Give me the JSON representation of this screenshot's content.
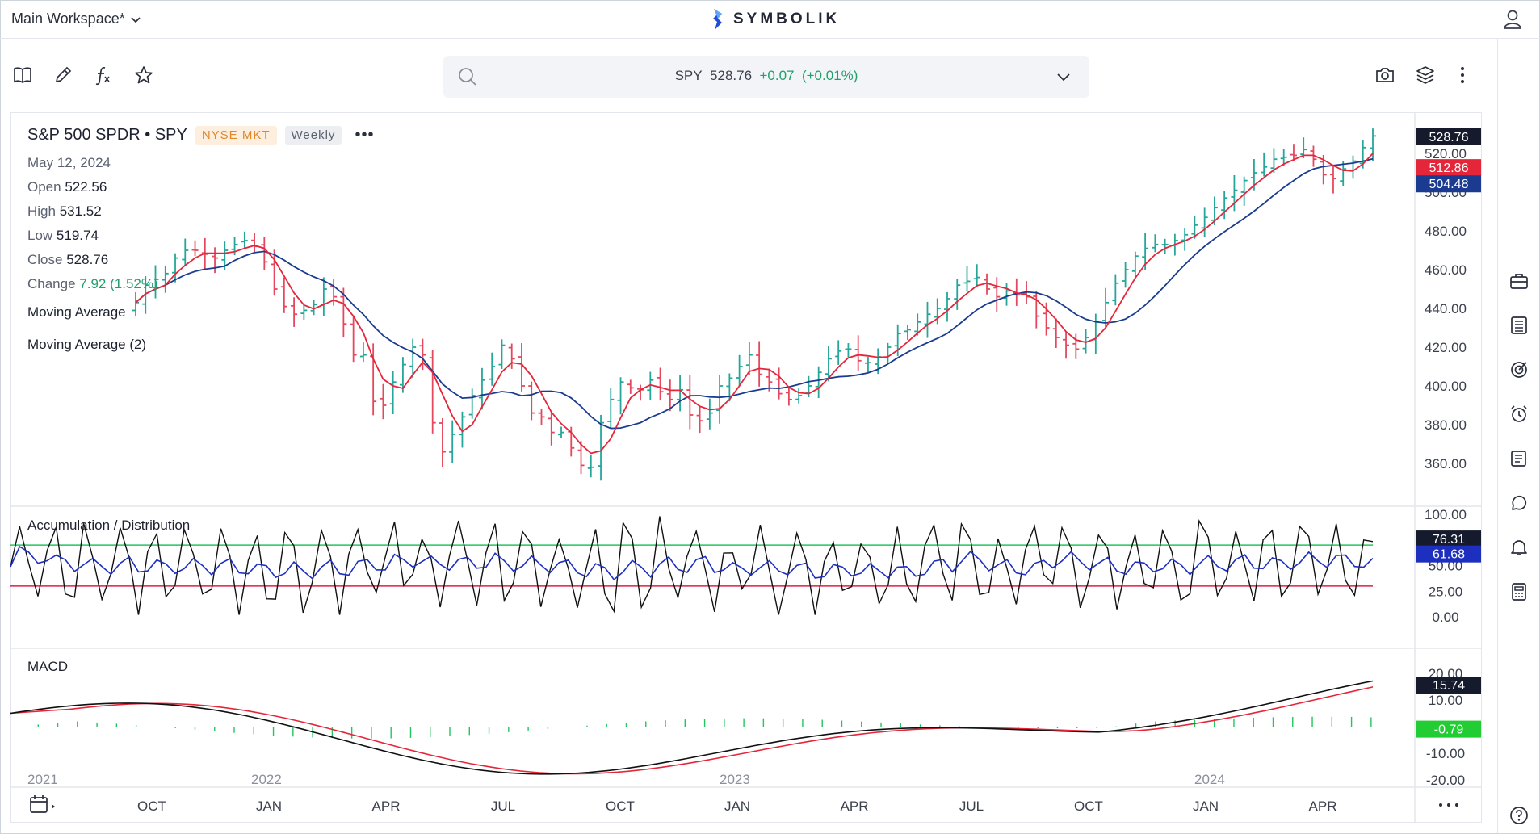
{
  "topbar": {
    "workspace": "Main Workspace*",
    "brand": "SYMBOLIK"
  },
  "search": {
    "symbol": "SPY",
    "price": "528.76",
    "change": "+0.07",
    "change_pct": "(+0.01%)"
  },
  "legend": {
    "name": "S&P 500 SPDR • SPY",
    "exchange": "NYSE MKT",
    "interval": "Weekly",
    "more": "•••",
    "date": "May 12, 2024",
    "open_label": "Open",
    "open": "522.56",
    "high_label": "High",
    "high": "531.52",
    "low_label": "Low",
    "low": "519.74",
    "close_label": "Close",
    "close": "528.76",
    "change_label": "Change",
    "change": "7.92 (1.52%)",
    "ma1": "Moving Average",
    "ma2": "Moving Average (2)"
  },
  "subpanels": {
    "ad_title": "Accumulation / Distribution",
    "macd_title": "MACD"
  },
  "colors": {
    "up": "#26a69a",
    "down": "#e5485e",
    "ma_fast": "#e5263a",
    "ma_slow": "#1a3b8f",
    "band_upper": "#22c55e",
    "band_lower": "#e11d48",
    "hist": "#22c55e"
  },
  "chart_data": [
    {
      "type": "candlestick",
      "title": "S&P 500 SPDR • SPY",
      "y_ticks": [
        "520.00",
        "500.00",
        "480.00",
        "460.00",
        "440.00",
        "420.00",
        "400.00",
        "380.00",
        "360.00"
      ],
      "ylim": [
        340,
        540
      ],
      "x_ticks": [
        "OCT",
        "JAN",
        "APR",
        "JUL",
        "OCT",
        "JAN",
        "APR",
        "JUL",
        "OCT",
        "JAN",
        "APR"
      ],
      "year_labels": [
        "2021",
        "2022",
        "2023",
        "2024"
      ],
      "close": [
        443,
        452,
        455,
        458,
        466,
        470,
        470,
        468,
        466,
        470,
        473,
        475,
        472,
        464,
        450,
        441,
        437,
        439,
        442,
        450,
        446,
        432,
        416,
        416,
        392,
        390,
        402,
        411,
        420,
        416,
        381,
        366,
        375,
        384,
        395,
        403,
        410,
        421,
        414,
        400,
        386,
        384,
        376,
        376,
        368,
        359,
        358,
        381,
        393,
        402,
        399,
        398,
        403,
        397,
        393,
        398,
        385,
        382,
        386,
        400,
        404,
        410,
        416,
        406,
        402,
        396,
        393,
        395,
        400,
        407,
        414,
        418,
        419,
        413,
        412,
        415,
        420,
        427,
        429,
        433,
        437,
        440,
        445,
        452,
        454,
        456,
        450,
        446,
        449,
        447,
        446,
        436,
        430,
        425,
        421,
        419,
        425,
        433,
        443,
        453,
        460,
        467,
        471,
        473,
        473,
        475,
        478,
        483,
        487,
        492,
        497,
        501,
        506,
        510,
        513,
        517,
        518,
        519,
        522,
        517,
        509,
        507,
        512,
        516,
        523,
        529
      ],
      "last_price": "528.76",
      "ma_fast_last": "512.86",
      "ma_slow_last": "504.48"
    },
    {
      "type": "line",
      "title": "Accumulation / Distribution",
      "y_ticks": [
        "100.00",
        "75.00",
        "50.00",
        "25.00",
        "0.00"
      ],
      "ylim": [
        0,
        100
      ],
      "upper_band": 70,
      "lower_band": 30,
      "last_values": [
        "76.31",
        "61.68"
      ]
    },
    {
      "type": "line",
      "title": "MACD",
      "y_ticks": [
        "20.00",
        "10.00",
        "-10.00",
        "-20.00"
      ],
      "ylim": [
        -20,
        20
      ],
      "last_values": [
        "15.74",
        "-0.79"
      ]
    }
  ]
}
